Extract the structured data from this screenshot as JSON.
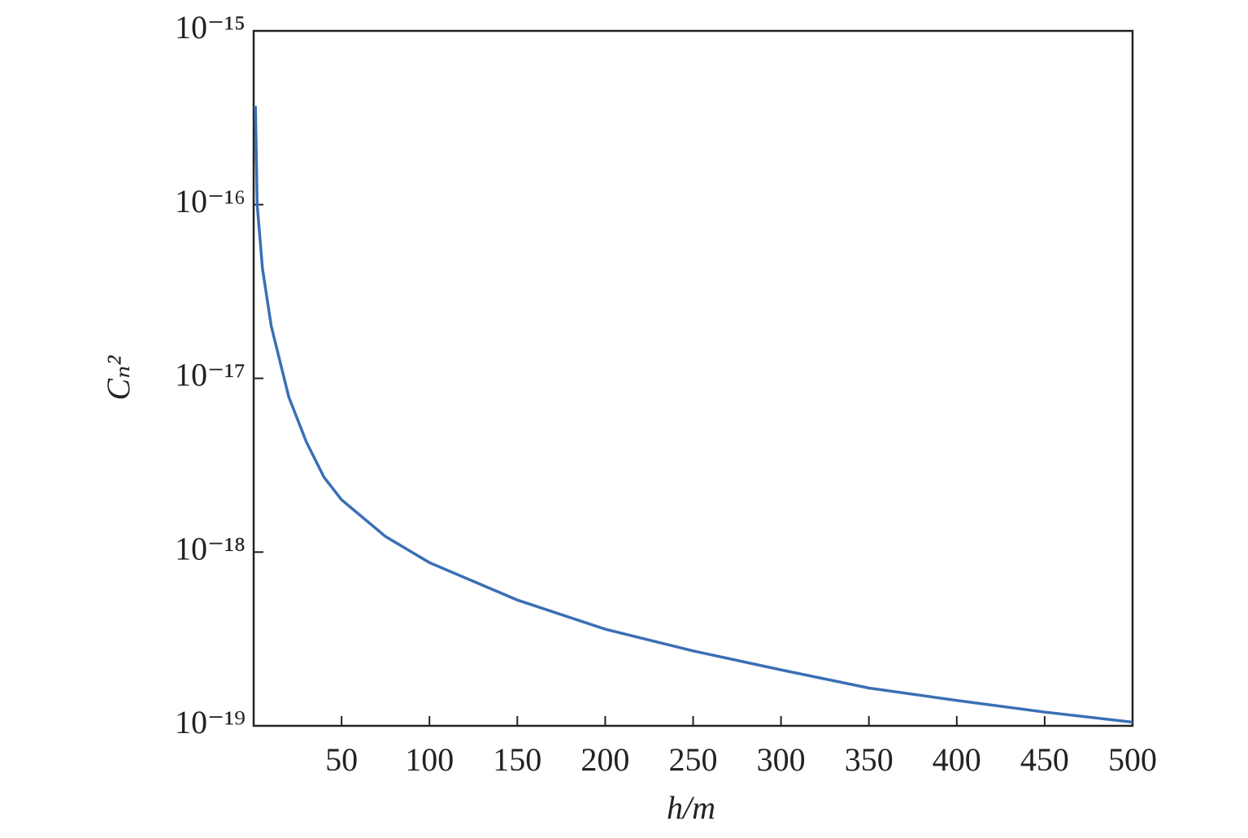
{
  "chart_data": {
    "type": "line",
    "xlabel": "h/m",
    "ylabel": "Cₙ²",
    "x": [
      1,
      2,
      5,
      10,
      20,
      30,
      40,
      50,
      75,
      100,
      150,
      200,
      250,
      300,
      350,
      400,
      450,
      500
    ],
    "series": [
      {
        "color": "#3a6fb5",
        "values": [
          3.7e-16,
          1e-16,
          4.3e-17,
          2e-17,
          7.8e-18,
          4.3e-18,
          2.7e-18,
          2e-18,
          1.23e-18,
          8.7e-19,
          5.3e-19,
          3.6e-19,
          2.7e-19,
          2.1e-19,
          1.65e-19,
          1.4e-19,
          1.2e-19,
          1.05e-19
        ]
      }
    ],
    "xlim": [
      0,
      500
    ],
    "xticks": [
      50,
      100,
      150,
      200,
      250,
      300,
      350,
      400,
      450,
      500
    ],
    "ylim": [
      1e-19,
      1e-15
    ],
    "log_y": true,
    "yticks": [
      {
        "value": 1e-19,
        "label": "10⁻¹⁹"
      },
      {
        "value": 1e-18,
        "label": "10⁻¹⁸"
      },
      {
        "value": 1e-17,
        "label": "10⁻¹⁷"
      },
      {
        "value": 1e-16,
        "label": "10⁻¹⁶"
      },
      {
        "value": 1e-15,
        "label": "10⁻¹⁵"
      }
    ],
    "grid": false
  }
}
